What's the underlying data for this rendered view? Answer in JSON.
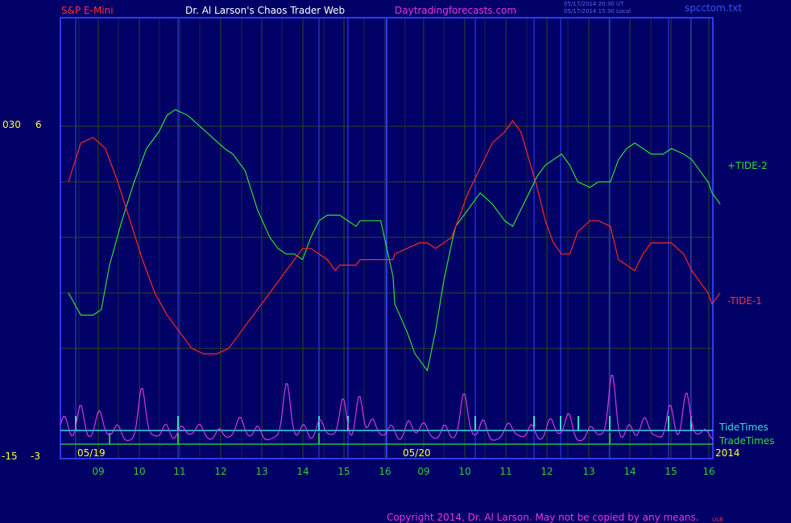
{
  "header": {
    "symbol": "S&P E-Mini",
    "title": "Dr. Al Larson's Chaos Trader Web",
    "site": "Daytradingforecasts.com",
    "stamp_ut": "05/17/2014 20:30 UT",
    "stamp_local": "05/17/2014 15:30 Local",
    "file": "spcctom.txt"
  },
  "footer": {
    "copyright": "Copyright 2014, Dr. Al Larson. May not be copied by any means.",
    "corner": "ULB"
  },
  "left_scale": {
    "top_a": "030",
    "top_b": "6",
    "bottom_a": "-15",
    "bottom_b": "-3"
  },
  "colors": {
    "background": "#000066",
    "frame": "#2a3aff",
    "grid": "#2c4a1e",
    "tide_plus": "#33dd33",
    "tide_minus": "#ff2a1a",
    "magenta": "#d23ae6",
    "cyan": "#33dddd",
    "green_time": "#22bb55",
    "axis_text": "#33cc33",
    "label_yellow": "#ffff33"
  },
  "chart_data": {
    "type": "line",
    "x_ticks": [
      "09",
      "10",
      "11",
      "12",
      "13",
      "14",
      "15",
      "16",
      "09",
      "10",
      "11",
      "12",
      "13",
      "14",
      "15",
      "16"
    ],
    "date_labels": [
      "05/19",
      "05/20"
    ],
    "year_label": "2014",
    "series": [
      {
        "name": "+TIDE-2",
        "color": "#33dd33",
        "x": [
          0,
          0.3,
          0.6,
          0.8,
          1.0,
          1.3,
          1.6,
          1.9,
          2.2,
          2.4,
          2.6,
          2.9,
          3.2,
          3.5,
          3.8,
          4.0,
          4.3,
          4.6,
          4.9,
          5.1,
          5.3,
          5.5,
          5.7,
          5.9,
          6.1,
          6.3,
          6.4,
          6.5,
          6.6,
          6.8,
          7.0,
          7.1,
          7.3,
          7.6,
          7.9,
          8.2,
          8.5,
          8.7,
          8.9,
          9.0,
          9.2,
          9.4,
          9.6,
          9.7,
          9.9,
          10.1,
          10.3,
          10.6,
          10.9,
          11.1,
          11.3,
          11.5,
          11.7,
          11.9,
          12.1,
          12.3,
          12.5,
          12.7,
          13.0,
          13.2,
          13.5,
          13.7,
          13.9,
          14.1,
          14.3,
          14.5,
          14.8,
          15.0,
          15.3,
          15.5,
          15.7,
          15.9,
          16.0,
          16.2
        ],
        "y": [
          3.0,
          2.6,
          2.6,
          2.7,
          3.5,
          4.3,
          5.0,
          5.6,
          5.9,
          6.2,
          6.3,
          6.2,
          6.0,
          5.8,
          5.6,
          5.5,
          5.2,
          4.5,
          4.0,
          3.8,
          3.7,
          3.7,
          3.6,
          4.0,
          4.3,
          4.4,
          4.4,
          4.4,
          4.4,
          4.3,
          4.2,
          4.3,
          4.3,
          4.3,
          3.3,
          2.8,
          2.3,
          1.9,
          1.7,
          1.6,
          2.3,
          3.2,
          3.9,
          4.2,
          4.4,
          4.6,
          4.8,
          4.6,
          4.3,
          4.2,
          4.5,
          4.8,
          5.1,
          5.3,
          5.4,
          5.5,
          5.3,
          5.0,
          4.9,
          5.0,
          5.0,
          5.4,
          5.6,
          5.7,
          5.6,
          5.5,
          5.5,
          5.6,
          5.5,
          5.4,
          5.2,
          5.0,
          4.8,
          4.6
        ],
        "label": "+TIDE-2"
      },
      {
        "name": "-TIDE-1",
        "color": "#ff2a1a",
        "x": [
          0,
          0.3,
          0.6,
          0.9,
          1.2,
          1.5,
          1.8,
          2.1,
          2.4,
          2.7,
          3.0,
          3.3,
          3.6,
          3.9,
          4.1,
          4.3,
          4.6,
          4.9,
          5.1,
          5.3,
          5.5,
          5.7,
          5.9,
          6.1,
          6.3,
          6.4,
          6.5,
          6.6,
          6.8,
          7.0,
          7.1,
          7.3,
          7.6,
          7.9,
          8.2,
          8.5,
          8.8,
          9.0,
          9.2,
          9.4,
          9.6,
          9.8,
          10.0,
          10.2,
          10.4,
          10.6,
          10.9,
          11.1,
          11.3,
          11.5,
          11.7,
          11.9,
          12.1,
          12.3,
          12.5,
          12.7,
          13.0,
          13.2,
          13.5,
          13.7,
          13.9,
          14.1,
          14.3,
          14.5,
          14.8,
          15.0,
          15.3,
          15.5,
          15.7,
          15.9,
          16.0,
          16.2
        ],
        "y": [
          5.0,
          5.7,
          5.8,
          5.6,
          5.0,
          4.3,
          3.6,
          3.0,
          2.6,
          2.3,
          2.0,
          1.9,
          1.9,
          2.0,
          2.2,
          2.4,
          2.7,
          3.0,
          3.2,
          3.4,
          3.6,
          3.8,
          3.8,
          3.7,
          3.6,
          3.5,
          3.4,
          3.5,
          3.5,
          3.5,
          3.6,
          3.6,
          3.6,
          3.6,
          3.7,
          3.8,
          3.9,
          3.9,
          3.8,
          3.9,
          4.0,
          4.4,
          4.8,
          5.1,
          5.4,
          5.7,
          5.9,
          6.1,
          5.9,
          5.4,
          4.9,
          4.3,
          3.9,
          3.7,
          3.7,
          4.1,
          4.3,
          4.3,
          4.2,
          3.6,
          3.5,
          3.4,
          3.7,
          3.9,
          3.9,
          3.9,
          3.7,
          3.4,
          3.2,
          3.0,
          2.8,
          3.0
        ],
        "label": "-TIDE-1"
      }
    ],
    "annotations": [
      "TideTimes",
      "TradeTimes"
    ]
  }
}
